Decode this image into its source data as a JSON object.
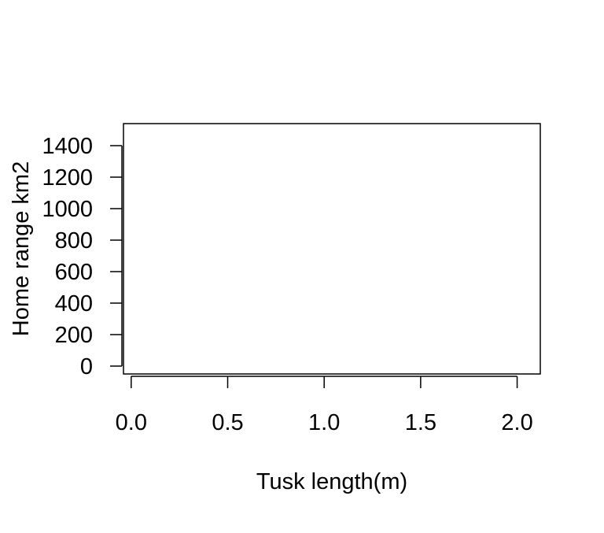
{
  "chart_data": {
    "type": "scatter",
    "title": "",
    "xlabel": "Tusk length(m)",
    "ylabel": "Home range km2",
    "xlim": [
      -0.04,
      2.12
    ],
    "ylim": [
      -50,
      1540
    ],
    "x_ticks": [
      "0.0",
      "0.5",
      "1.0",
      "1.5",
      "2.0"
    ],
    "x_tick_values": [
      0.0,
      0.5,
      1.0,
      1.5,
      2.0
    ],
    "y_ticks": [
      "0",
      "200",
      "400",
      "600",
      "800",
      "1000",
      "1200",
      "1400"
    ],
    "y_tick_values": [
      0,
      200,
      400,
      600,
      800,
      1000,
      1200,
      1400
    ],
    "series": [
      {
        "x": [],
        "y": []
      }
    ],
    "grid": false,
    "legend": "none"
  }
}
